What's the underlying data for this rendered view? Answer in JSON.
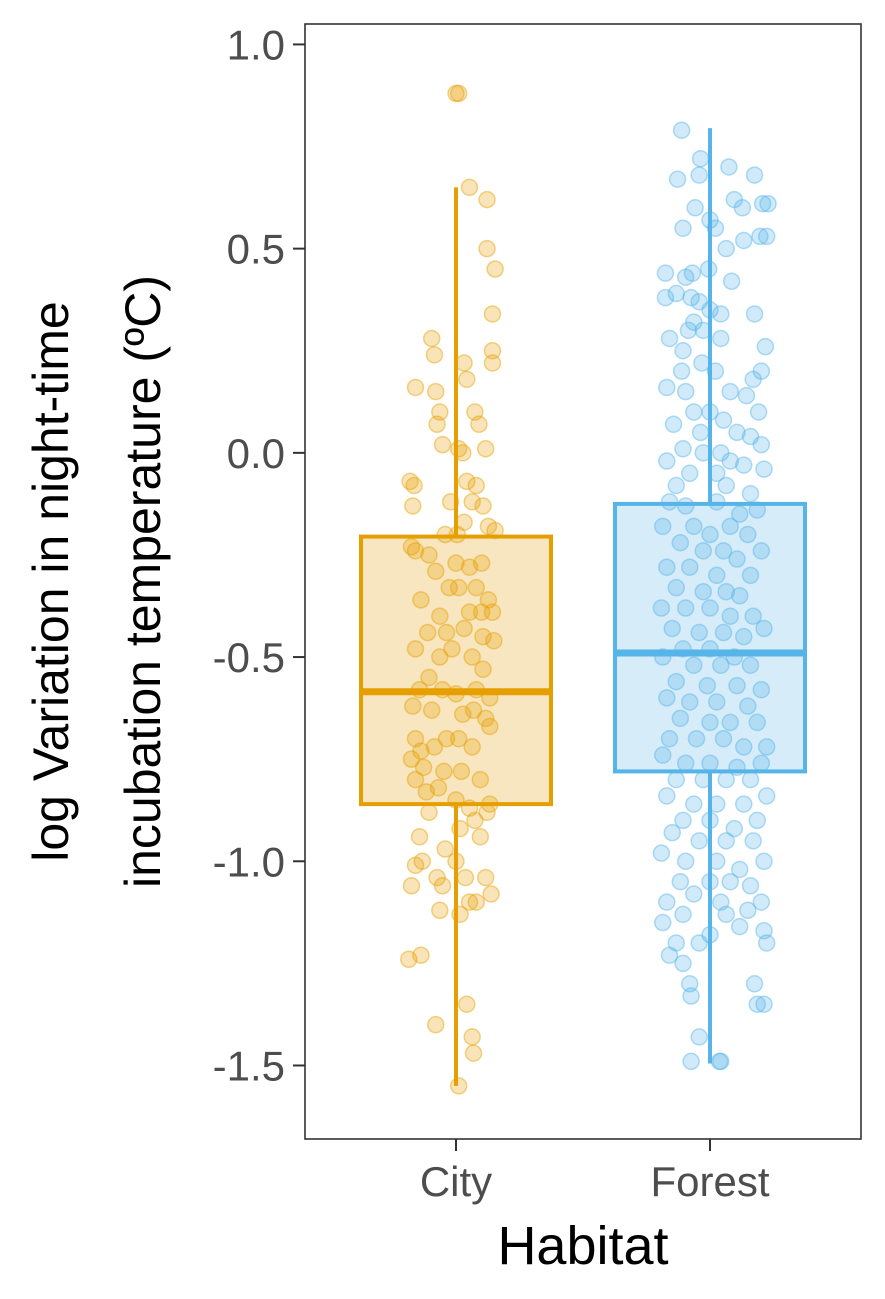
{
  "chart_data": {
    "type": "boxplot",
    "xlabel": "Habitat",
    "ylabel_lines": [
      "log Variation in night-time",
      "incubation temperature (ºC)"
    ],
    "ylim": [
      -1.68,
      1.05
    ],
    "yticks": [
      1.0,
      0.5,
      0.0,
      -0.5,
      -1.0,
      -1.5
    ],
    "ytick_labels": [
      "1.0",
      "0.5",
      "0.0",
      "-0.5",
      "-1.0",
      "-1.5"
    ],
    "grid": false,
    "categories": [
      "City",
      "Forest"
    ],
    "groups": [
      {
        "name": "City",
        "color": "#E69F00",
        "fill": "#F8E6C0",
        "whisker_low": -1.55,
        "q1": -0.86,
        "median": -0.585,
        "q3": -0.205,
        "whisker_high": 0.65,
        "points": [
          [
            0.0,
            0.88
          ],
          [
            0.02,
            0.88
          ],
          [
            0.1,
            0.65
          ],
          [
            0.23,
            0.62
          ],
          [
            0.23,
            0.5
          ],
          [
            0.29,
            0.45
          ],
          [
            0.27,
            0.34
          ],
          [
            0.27,
            0.25
          ],
          [
            0.27,
            0.22
          ],
          [
            -0.18,
            0.28
          ],
          [
            -0.16,
            0.24
          ],
          [
            0.06,
            0.22
          ],
          [
            0.08,
            0.18
          ],
          [
            -0.3,
            0.16
          ],
          [
            -0.15,
            0.15
          ],
          [
            -0.12,
            0.1
          ],
          [
            -0.14,
            0.07
          ],
          [
            -0.1,
            0.02
          ],
          [
            0.14,
            0.1
          ],
          [
            0.17,
            0.07
          ],
          [
            0.02,
            0.01
          ],
          [
            0.05,
            0.0
          ],
          [
            0.22,
            0.01
          ],
          [
            -0.34,
            -0.07
          ],
          [
            -0.31,
            -0.08
          ],
          [
            0.08,
            -0.07
          ],
          [
            0.15,
            -0.08
          ],
          [
            -0.04,
            -0.12
          ],
          [
            0.12,
            -0.12
          ],
          [
            0.2,
            -0.13
          ],
          [
            -0.32,
            -0.13
          ],
          [
            0.06,
            -0.17
          ],
          [
            0.24,
            -0.18
          ],
          [
            0.29,
            -0.19
          ],
          [
            -0.08,
            -0.2
          ],
          [
            0.01,
            -0.2
          ],
          [
            -0.3,
            -0.24
          ],
          [
            -0.33,
            -0.23
          ],
          [
            -0.2,
            -0.25
          ],
          [
            0.0,
            -0.27
          ],
          [
            0.1,
            -0.28
          ],
          [
            0.19,
            -0.27
          ],
          [
            -0.15,
            -0.29
          ],
          [
            -0.05,
            -0.33
          ],
          [
            0.02,
            -0.33
          ],
          [
            0.15,
            -0.33
          ],
          [
            0.24,
            -0.36
          ],
          [
            -0.26,
            -0.36
          ],
          [
            -0.12,
            -0.4
          ],
          [
            0.1,
            -0.39
          ],
          [
            0.19,
            -0.39
          ],
          [
            0.27,
            -0.39
          ],
          [
            -0.21,
            -0.44
          ],
          [
            -0.07,
            -0.44
          ],
          [
            0.06,
            -0.43
          ],
          [
            0.2,
            -0.45
          ],
          [
            0.28,
            -0.46
          ],
          [
            -0.3,
            -0.48
          ],
          [
            -0.12,
            -0.5
          ],
          [
            -0.03,
            -0.48
          ],
          [
            0.12,
            -0.5
          ],
          [
            0.2,
            -0.53
          ],
          [
            -0.2,
            -0.55
          ],
          [
            -0.27,
            -0.58
          ],
          [
            -0.1,
            -0.58
          ],
          [
            0.0,
            -0.59
          ],
          [
            0.15,
            -0.58
          ],
          [
            0.25,
            -0.6
          ],
          [
            -0.32,
            -0.62
          ],
          [
            -0.18,
            -0.63
          ],
          [
            0.05,
            -0.64
          ],
          [
            0.13,
            -0.63
          ],
          [
            0.22,
            -0.65
          ],
          [
            0.25,
            -0.67
          ],
          [
            -0.3,
            -0.7
          ],
          [
            -0.26,
            -0.73
          ],
          [
            -0.16,
            -0.72
          ],
          [
            -0.07,
            -0.7
          ],
          [
            0.02,
            -0.7
          ],
          [
            0.12,
            -0.72
          ],
          [
            -0.33,
            -0.75
          ],
          [
            -0.24,
            -0.77
          ],
          [
            -0.09,
            -0.78
          ],
          [
            0.04,
            -0.78
          ],
          [
            0.18,
            -0.8
          ],
          [
            -0.3,
            -0.8
          ],
          [
            -0.22,
            -0.83
          ],
          [
            -0.13,
            -0.82
          ],
          [
            0.0,
            -0.85
          ],
          [
            0.1,
            -0.87
          ],
          [
            0.23,
            -0.88
          ],
          [
            0.25,
            -0.86
          ],
          [
            -0.2,
            -0.88
          ],
          [
            0.03,
            -0.92
          ],
          [
            0.14,
            -0.9
          ],
          [
            -0.27,
            -0.94
          ],
          [
            -0.08,
            -0.97
          ],
          [
            0.18,
            -0.94
          ],
          [
            -0.25,
            -1.0
          ],
          [
            -0.3,
            -1.01
          ],
          [
            0.0,
            -1.0
          ],
          [
            -0.14,
            -1.04
          ],
          [
            -0.1,
            -1.06
          ],
          [
            0.07,
            -1.04
          ],
          [
            0.22,
            -1.04
          ],
          [
            0.26,
            -1.08
          ],
          [
            -0.33,
            -1.06
          ],
          [
            0.1,
            -1.1
          ],
          [
            0.15,
            -1.1
          ],
          [
            -0.12,
            -1.12
          ],
          [
            0.03,
            -1.13
          ],
          [
            -0.26,
            -1.23
          ],
          [
            -0.35,
            -1.24
          ],
          [
            0.08,
            -1.35
          ],
          [
            -0.15,
            -1.4
          ],
          [
            0.12,
            -1.43
          ],
          [
            0.13,
            -1.47
          ],
          [
            0.02,
            -1.55
          ]
        ]
      },
      {
        "name": "Forest",
        "color": "#56B4E9",
        "fill": "#D6ECF9",
        "whisker_low": -1.495,
        "q1": -0.78,
        "median": -0.49,
        "q3": -0.125,
        "whisker_high": 0.795,
        "points": [
          [
            -0.21,
            0.79
          ],
          [
            0.14,
            0.7
          ],
          [
            0.33,
            0.68
          ],
          [
            -0.07,
            0.72
          ],
          [
            -0.08,
            0.68
          ],
          [
            -0.24,
            0.67
          ],
          [
            0.18,
            0.62
          ],
          [
            0.24,
            0.6
          ],
          [
            0.39,
            0.61
          ],
          [
            0.43,
            0.61
          ],
          [
            -0.11,
            0.6
          ],
          [
            0.0,
            0.57
          ],
          [
            0.04,
            0.55
          ],
          [
            -0.2,
            0.55
          ],
          [
            0.37,
            0.53
          ],
          [
            0.42,
            0.53
          ],
          [
            0.12,
            0.5
          ],
          [
            0.25,
            0.52
          ],
          [
            -0.33,
            0.44
          ],
          [
            -0.18,
            0.43
          ],
          [
            -0.13,
            0.44
          ],
          [
            -0.01,
            0.45
          ],
          [
            0.16,
            0.42
          ],
          [
            -0.25,
            0.39
          ],
          [
            -0.14,
            0.38
          ],
          [
            -0.08,
            0.37
          ],
          [
            -0.33,
            0.38
          ],
          [
            -0.12,
            0.32
          ],
          [
            0.0,
            0.35
          ],
          [
            0.08,
            0.34
          ],
          [
            0.33,
            0.34
          ],
          [
            -0.3,
            0.28
          ],
          [
            -0.16,
            0.3
          ],
          [
            -0.05,
            0.3
          ],
          [
            0.08,
            0.28
          ],
          [
            -0.2,
            0.25
          ],
          [
            -0.06,
            0.22
          ],
          [
            0.04,
            0.2
          ],
          [
            0.41,
            0.26
          ],
          [
            0.38,
            0.2
          ],
          [
            0.32,
            0.18
          ],
          [
            -0.21,
            0.2
          ],
          [
            -0.32,
            0.16
          ],
          [
            0.15,
            0.15
          ],
          [
            0.27,
            0.14
          ],
          [
            -0.18,
            0.15
          ],
          [
            -0.12,
            0.1
          ],
          [
            0.0,
            0.1
          ],
          [
            0.1,
            0.08
          ],
          [
            0.36,
            0.1
          ],
          [
            -0.27,
            0.07
          ],
          [
            -0.07,
            0.05
          ],
          [
            0.2,
            0.05
          ],
          [
            0.3,
            0.04
          ],
          [
            -0.2,
            0.01
          ],
          [
            -0.05,
            0.0
          ],
          [
            0.08,
            0.0
          ],
          [
            0.38,
            0.02
          ],
          [
            -0.32,
            -0.02
          ],
          [
            0.15,
            -0.02
          ],
          [
            0.25,
            -0.03
          ],
          [
            0.4,
            -0.04
          ],
          [
            -0.15,
            -0.05
          ],
          [
            0.05,
            -0.05
          ],
          [
            -0.25,
            -0.08
          ],
          [
            0.12,
            -0.08
          ],
          [
            0.3,
            -0.1
          ],
          [
            -0.3,
            -0.12
          ],
          [
            -0.18,
            -0.13
          ],
          [
            0.05,
            -0.12
          ],
          [
            0.22,
            -0.15
          ],
          [
            0.35,
            -0.14
          ],
          [
            -0.35,
            -0.18
          ],
          [
            -0.12,
            -0.18
          ],
          [
            0.0,
            -0.2
          ],
          [
            0.15,
            -0.18
          ],
          [
            0.28,
            -0.2
          ],
          [
            -0.22,
            -0.22
          ],
          [
            -0.05,
            -0.24
          ],
          [
            0.1,
            -0.24
          ],
          [
            0.2,
            -0.26
          ],
          [
            0.38,
            -0.24
          ],
          [
            -0.32,
            -0.28
          ],
          [
            -0.15,
            -0.28
          ],
          [
            0.05,
            -0.3
          ],
          [
            0.3,
            -0.3
          ],
          [
            -0.25,
            -0.33
          ],
          [
            -0.05,
            -0.34
          ],
          [
            0.12,
            -0.34
          ],
          [
            0.22,
            -0.35
          ],
          [
            -0.36,
            -0.38
          ],
          [
            -0.18,
            -0.38
          ],
          [
            0.0,
            -0.38
          ],
          [
            0.15,
            -0.4
          ],
          [
            0.32,
            -0.4
          ],
          [
            -0.28,
            -0.43
          ],
          [
            -0.08,
            -0.44
          ],
          [
            0.1,
            -0.44
          ],
          [
            0.25,
            -0.45
          ],
          [
            0.4,
            -0.43
          ],
          [
            -0.2,
            -0.48
          ],
          [
            0.0,
            -0.48
          ],
          [
            0.18,
            -0.5
          ],
          [
            -0.35,
            -0.5
          ],
          [
            -0.12,
            -0.52
          ],
          [
            0.08,
            -0.52
          ],
          [
            0.3,
            -0.52
          ],
          [
            -0.25,
            -0.56
          ],
          [
            -0.02,
            -0.57
          ],
          [
            0.2,
            -0.57
          ],
          [
            0.38,
            -0.58
          ],
          [
            -0.32,
            -0.6
          ],
          [
            -0.15,
            -0.61
          ],
          [
            0.05,
            -0.61
          ],
          [
            0.28,
            -0.62
          ],
          [
            -0.22,
            -0.65
          ],
          [
            0.0,
            -0.66
          ],
          [
            0.15,
            -0.66
          ],
          [
            0.35,
            -0.66
          ],
          [
            -0.3,
            -0.7
          ],
          [
            -0.1,
            -0.7
          ],
          [
            0.1,
            -0.7
          ],
          [
            0.25,
            -0.72
          ],
          [
            0.42,
            -0.72
          ],
          [
            -0.35,
            -0.74
          ],
          [
            -0.18,
            -0.76
          ],
          [
            0.0,
            -0.76
          ],
          [
            0.2,
            -0.77
          ],
          [
            0.38,
            -0.76
          ],
          [
            -0.25,
            -0.8
          ],
          [
            -0.05,
            -0.8
          ],
          [
            0.12,
            -0.8
          ],
          [
            0.3,
            -0.8
          ],
          [
            -0.32,
            -0.84
          ],
          [
            -0.12,
            -0.86
          ],
          [
            0.05,
            -0.86
          ],
          [
            0.25,
            -0.86
          ],
          [
            0.42,
            -0.84
          ],
          [
            -0.2,
            -0.9
          ],
          [
            0.0,
            -0.9
          ],
          [
            0.18,
            -0.92
          ],
          [
            0.35,
            -0.9
          ],
          [
            -0.28,
            -0.93
          ],
          [
            -0.08,
            -0.95
          ],
          [
            0.12,
            -0.95
          ],
          [
            0.32,
            -0.95
          ],
          [
            -0.36,
            -0.98
          ],
          [
            -0.18,
            -1.0
          ],
          [
            0.05,
            -1.0
          ],
          [
            0.22,
            -1.02
          ],
          [
            0.4,
            -1.0
          ],
          [
            -0.22,
            -1.05
          ],
          [
            0.0,
            -1.05
          ],
          [
            0.15,
            -1.05
          ],
          [
            0.3,
            -1.06
          ],
          [
            -0.32,
            -1.1
          ],
          [
            -0.12,
            -1.08
          ],
          [
            0.08,
            -1.1
          ],
          [
            0.38,
            -1.1
          ],
          [
            -0.2,
            -1.13
          ],
          [
            0.12,
            -1.13
          ],
          [
            0.28,
            -1.12
          ],
          [
            -0.35,
            -1.15
          ],
          [
            0.0,
            -1.18
          ],
          [
            0.22,
            -1.16
          ],
          [
            0.4,
            -1.17
          ],
          [
            -0.25,
            -1.2
          ],
          [
            -0.08,
            -1.2
          ],
          [
            0.42,
            -1.2
          ],
          [
            -0.3,
            -1.23
          ],
          [
            -0.2,
            -1.25
          ],
          [
            -0.15,
            -1.3
          ],
          [
            -0.14,
            -1.33
          ],
          [
            0.33,
            -1.3
          ],
          [
            0.35,
            -1.35
          ],
          [
            0.4,
            -1.35
          ],
          [
            -0.08,
            -1.43
          ],
          [
            -0.14,
            -1.49
          ],
          [
            0.07,
            -1.49
          ],
          [
            0.08,
            -1.49
          ]
        ]
      }
    ]
  }
}
